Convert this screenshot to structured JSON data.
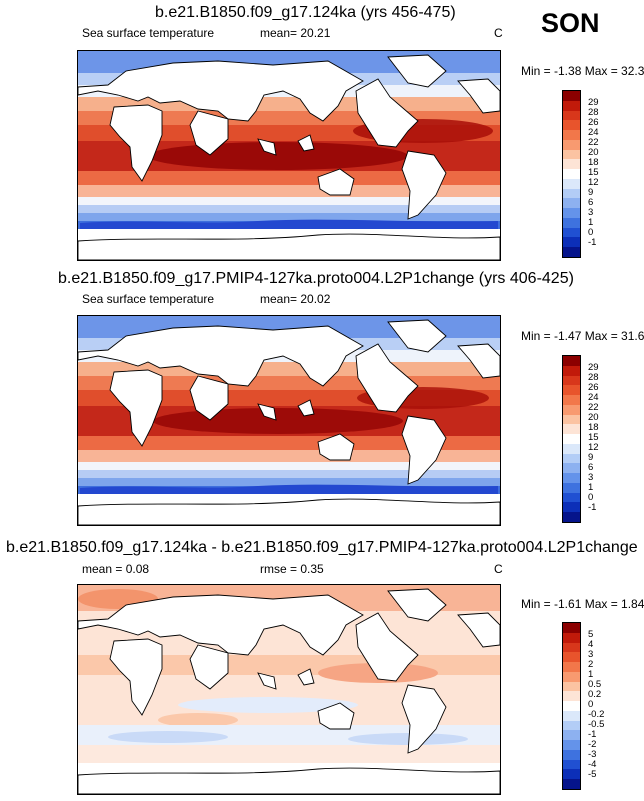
{
  "season": "SON",
  "panels": [
    {
      "title": "b.e21.B1850.f09_g17.124ka (yrs 456-475)",
      "variable": "Sea surface temperature",
      "stat_left": "",
      "stat_mid": "mean=  20.21",
      "units": "C",
      "minmax": "Min =  -1.38 Max =  32.33",
      "colorbar": {
        "colors": [
          "#8b0000",
          "#c11a0a",
          "#d8371b",
          "#e8542c",
          "#f2774a",
          "#f89a70",
          "#fbc3a2",
          "#fde4d6",
          "#ffffff",
          "#dbe8fa",
          "#b3cdf6",
          "#8db1f0",
          "#6493ea",
          "#3e72df",
          "#2050d2",
          "#0c2fb8",
          "#05148b"
        ],
        "labels": [
          "29",
          "28",
          "26",
          "24",
          "22",
          "20",
          "18",
          "15",
          "12",
          "9",
          "6",
          "3",
          "1",
          "0",
          "-1"
        ]
      }
    },
    {
      "title": "b.e21.B1850.f09_g17.PMIP4-127ka.proto004.L2P1change (yrs 406-425)",
      "variable": "Sea surface temperature",
      "stat_left": "",
      "stat_mid": "mean=  20.02",
      "units": "",
      "minmax": "Min =  -1.47 Max =  31.61",
      "colorbar": {
        "colors": [
          "#8b0000",
          "#c11a0a",
          "#d8371b",
          "#e8542c",
          "#f2774a",
          "#f89a70",
          "#fbc3a2",
          "#fde4d6",
          "#ffffff",
          "#dbe8fa",
          "#b3cdf6",
          "#8db1f0",
          "#6493ea",
          "#3e72df",
          "#2050d2",
          "#0c2fb8",
          "#05148b"
        ],
        "labels": [
          "29",
          "28",
          "26",
          "24",
          "22",
          "20",
          "18",
          "15",
          "12",
          "9",
          "6",
          "3",
          "1",
          "0",
          "-1"
        ]
      }
    },
    {
      "title": "b.e21.B1850.f09_g17.124ka - b.e21.B1850.f09_g17.PMIP4-127ka.proto004.L2P1change",
      "variable": "",
      "stat_left": "mean =   0.08",
      "stat_mid": "rmse =   0.35",
      "units": "C",
      "minmax": "Min =  -1.61 Max =   1.84",
      "colorbar": {
        "colors": [
          "#8b0000",
          "#c11a0a",
          "#d8371b",
          "#e8542c",
          "#f2774a",
          "#f89a70",
          "#fbc3a2",
          "#fde4d6",
          "#ffffff",
          "#dbe8fa",
          "#b3cdf6",
          "#8db1f0",
          "#6493ea",
          "#3e72df",
          "#2050d2",
          "#0c2fb8",
          "#05148b"
        ],
        "labels": [
          "5",
          "4",
          "3",
          "2",
          "1",
          "0.5",
          "0.2",
          "0",
          "-0.2",
          "-0.5",
          "-1",
          "-2",
          "-3",
          "-4",
          "-5"
        ]
      }
    }
  ]
}
